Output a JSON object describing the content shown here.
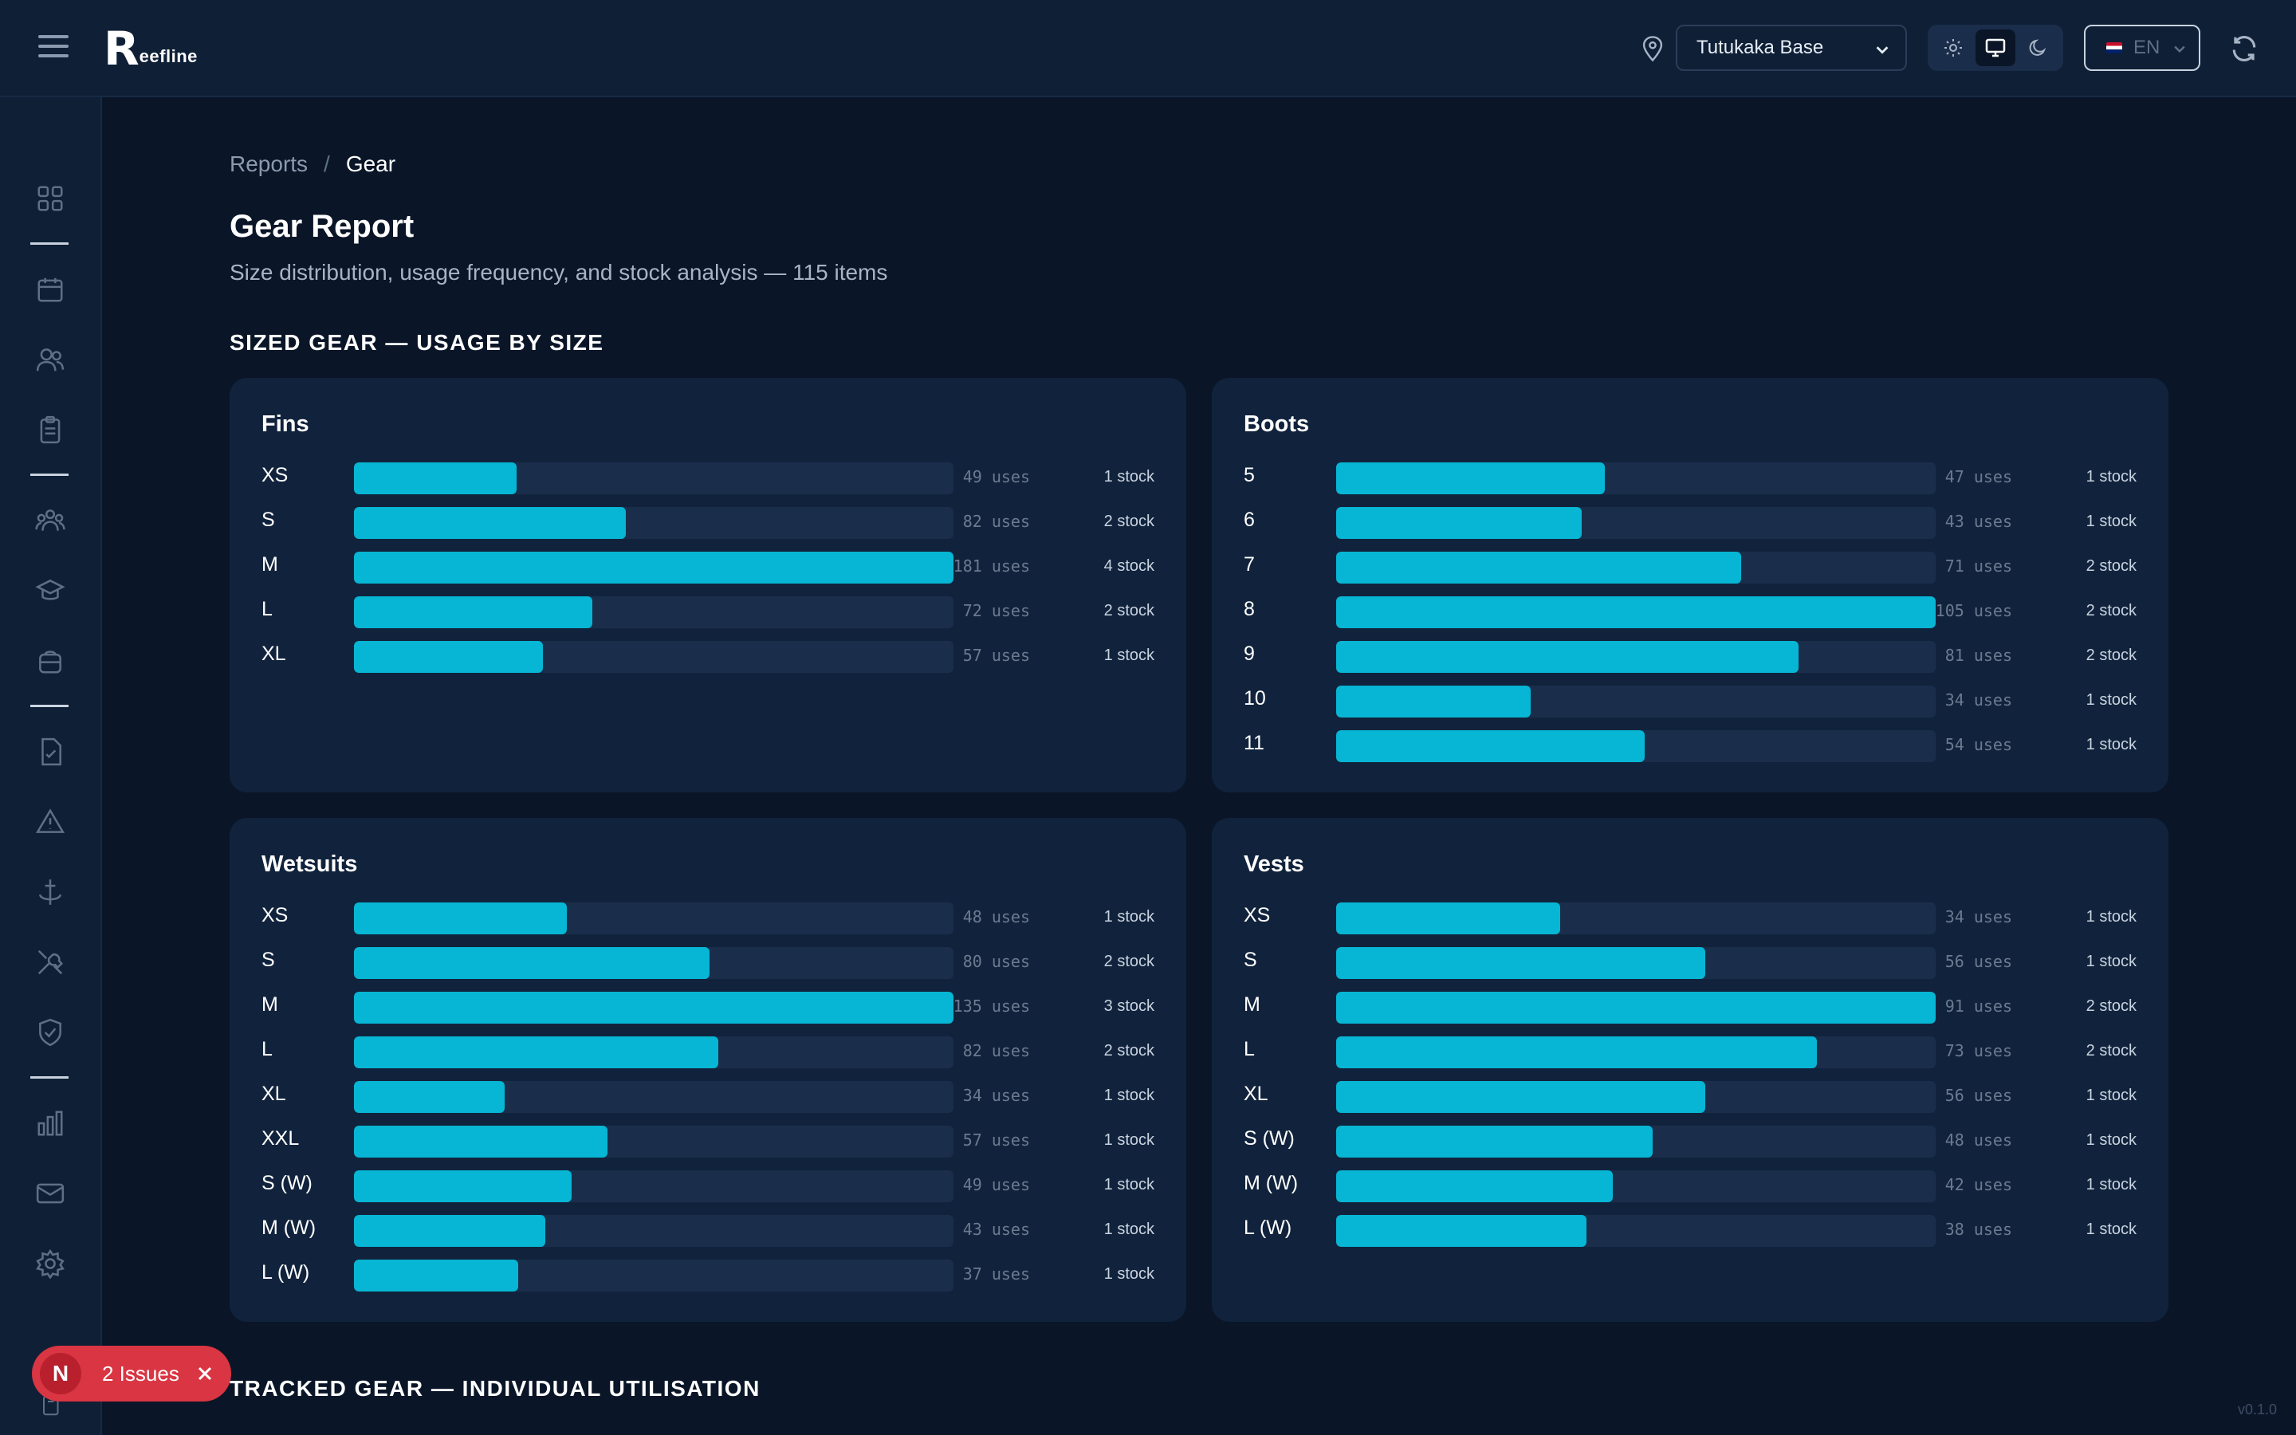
{
  "app": {
    "logo_mark": "R",
    "logo_text": "eefline"
  },
  "header": {
    "location": "Tutukaka Base",
    "language": "EN"
  },
  "breadcrumb": {
    "parent": "Reports",
    "separator": "/",
    "current": "Gear"
  },
  "page": {
    "title": "Gear Report",
    "subtitle": "Size distribution, usage frequency, and stock analysis — 115 items"
  },
  "sections": {
    "sized": "SIZED GEAR — USAGE BY SIZE",
    "tracked": "TRACKED GEAR — INDIVIDUAL UTILISATION"
  },
  "cards": [
    {
      "title": "Fins",
      "max": 181,
      "rows": [
        {
          "size": "XS",
          "uses": 49,
          "uses_label": "49 uses",
          "stock": "1 stock"
        },
        {
          "size": "S",
          "uses": 82,
          "uses_label": "82 uses",
          "stock": "2 stock"
        },
        {
          "size": "M",
          "uses": 181,
          "uses_label": "181 uses",
          "stock": "4 stock"
        },
        {
          "size": "L",
          "uses": 72,
          "uses_label": "72 uses",
          "stock": "2 stock"
        },
        {
          "size": "XL",
          "uses": 57,
          "uses_label": "57 uses",
          "stock": "1 stock"
        }
      ]
    },
    {
      "title": "Boots",
      "max": 105,
      "rows": [
        {
          "size": "5",
          "uses": 47,
          "uses_label": "47 uses",
          "stock": "1 stock"
        },
        {
          "size": "6",
          "uses": 43,
          "uses_label": "43 uses",
          "stock": "1 stock"
        },
        {
          "size": "7",
          "uses": 71,
          "uses_label": "71 uses",
          "stock": "2 stock"
        },
        {
          "size": "8",
          "uses": 105,
          "uses_label": "105 uses",
          "stock": "2 stock"
        },
        {
          "size": "9",
          "uses": 81,
          "uses_label": "81 uses",
          "stock": "2 stock"
        },
        {
          "size": "10",
          "uses": 34,
          "uses_label": "34 uses",
          "stock": "1 stock"
        },
        {
          "size": "11",
          "uses": 54,
          "uses_label": "54 uses",
          "stock": "1 stock"
        }
      ]
    },
    {
      "title": "Wetsuits",
      "max": 135,
      "rows": [
        {
          "size": "XS",
          "uses": 48,
          "uses_label": "48 uses",
          "stock": "1 stock"
        },
        {
          "size": "S",
          "uses": 80,
          "uses_label": "80 uses",
          "stock": "2 stock"
        },
        {
          "size": "M",
          "uses": 135,
          "uses_label": "135 uses",
          "stock": "3 stock"
        },
        {
          "size": "L",
          "uses": 82,
          "uses_label": "82 uses",
          "stock": "2 stock"
        },
        {
          "size": "XL",
          "uses": 34,
          "uses_label": "34 uses",
          "stock": "1 stock"
        },
        {
          "size": "XXL",
          "uses": 57,
          "uses_label": "57 uses",
          "stock": "1 stock"
        },
        {
          "size": "S (W)",
          "uses": 49,
          "uses_label": "49 uses",
          "stock": "1 stock"
        },
        {
          "size": "M (W)",
          "uses": 43,
          "uses_label": "43 uses",
          "stock": "1 stock"
        },
        {
          "size": "L (W)",
          "uses": 37,
          "uses_label": "37 uses",
          "stock": "1 stock"
        }
      ]
    },
    {
      "title": "Vests",
      "max": 91,
      "rows": [
        {
          "size": "XS",
          "uses": 34,
          "uses_label": "34 uses",
          "stock": "1 stock"
        },
        {
          "size": "S",
          "uses": 56,
          "uses_label": "56 uses",
          "stock": "1 stock"
        },
        {
          "size": "M",
          "uses": 91,
          "uses_label": "91 uses",
          "stock": "2 stock"
        },
        {
          "size": "L",
          "uses": 73,
          "uses_label": "73 uses",
          "stock": "2 stock"
        },
        {
          "size": "XL",
          "uses": 56,
          "uses_label": "56 uses",
          "stock": "1 stock"
        },
        {
          "size": "S (W)",
          "uses": 48,
          "uses_label": "48 uses",
          "stock": "1 stock"
        },
        {
          "size": "M (W)",
          "uses": 42,
          "uses_label": "42 uses",
          "stock": "1 stock"
        },
        {
          "size": "L (W)",
          "uses": 38,
          "uses_label": "38 uses",
          "stock": "1 stock"
        }
      ]
    }
  ],
  "sidebar": {
    "icons": [
      "dashboard-icon",
      "calendar-icon",
      "customers-icon",
      "bookings-icon",
      "staff-icon",
      "courses-icon",
      "equipment-icon",
      "forms-icon",
      "incidents-icon",
      "boats-icon",
      "maintenance-icon",
      "compliance-icon",
      "reports-icon",
      "messages-icon",
      "settings-icon"
    ]
  },
  "issues": {
    "badge": "N",
    "label": "2 Issues"
  },
  "version": "v0.1.0",
  "colors": {
    "bar": "#06b6d4",
    "track": "#1a2e4c",
    "card": "#11233c",
    "background": "#0a1628",
    "issues": "#d93542"
  }
}
